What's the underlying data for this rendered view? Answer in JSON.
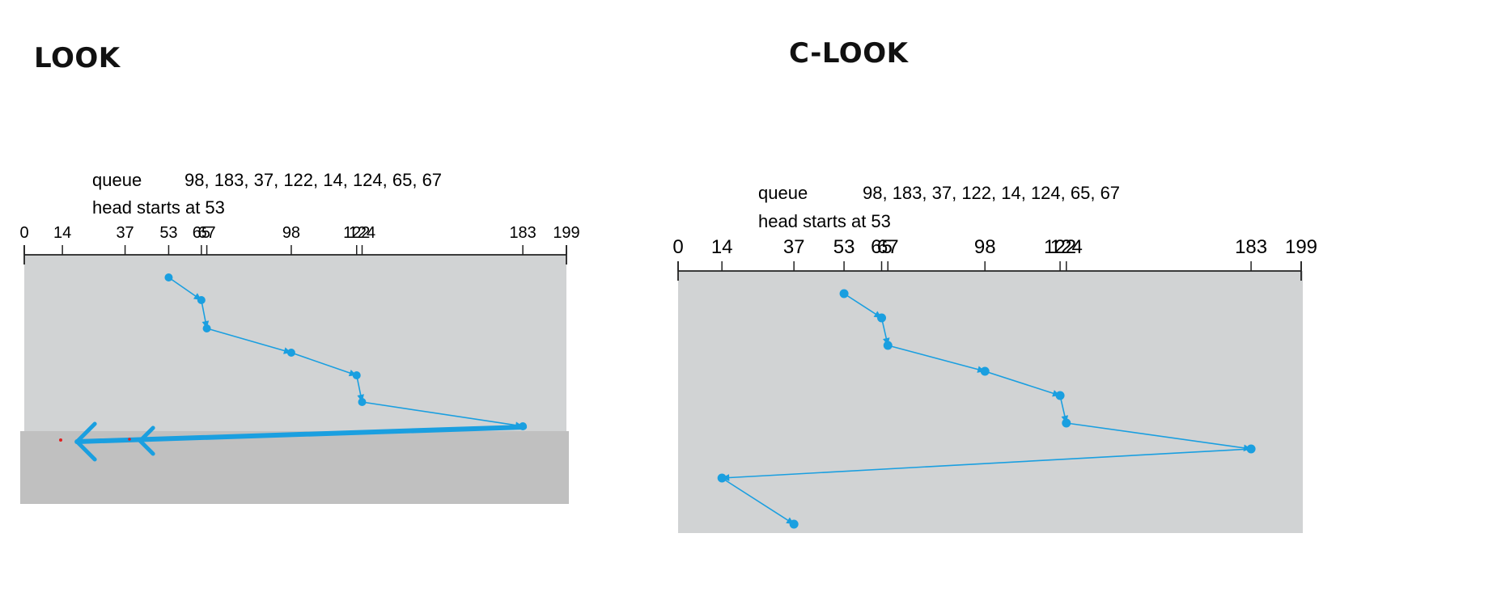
{
  "diagrams": [
    {
      "title": "LOOK",
      "queue_label": "queue",
      "queue_values": "98, 183, 37, 122, 14, 124, 65, 67",
      "head_text": "head starts at 53",
      "track_min": 0,
      "track_max": 199,
      "ticks": [
        0,
        14,
        37,
        53,
        65,
        67,
        98,
        122,
        124,
        183,
        199
      ],
      "service_order": [
        53,
        65,
        67,
        98,
        122,
        124,
        183
      ],
      "reversal_arrow": {
        "from": 183,
        "to": 14,
        "colors": {
          "arrow": "#1a9fe0",
          "highlight_box": "#c0c0c0"
        }
      }
    },
    {
      "title": "C-LOOK",
      "queue_label": "queue",
      "queue_values": "98, 183, 37, 122, 14, 124, 65, 67",
      "head_text": "head starts at 53",
      "track_min": 0,
      "track_max": 199,
      "ticks": [
        0,
        14,
        37,
        53,
        65,
        67,
        98,
        122,
        124,
        183,
        199
      ],
      "service_order": [
        53,
        65,
        67,
        98,
        122,
        124,
        183,
        14,
        37
      ]
    }
  ],
  "colors": {
    "panel": "#d1d3d4",
    "path": "#1a9fe0",
    "axis": "#222222"
  }
}
